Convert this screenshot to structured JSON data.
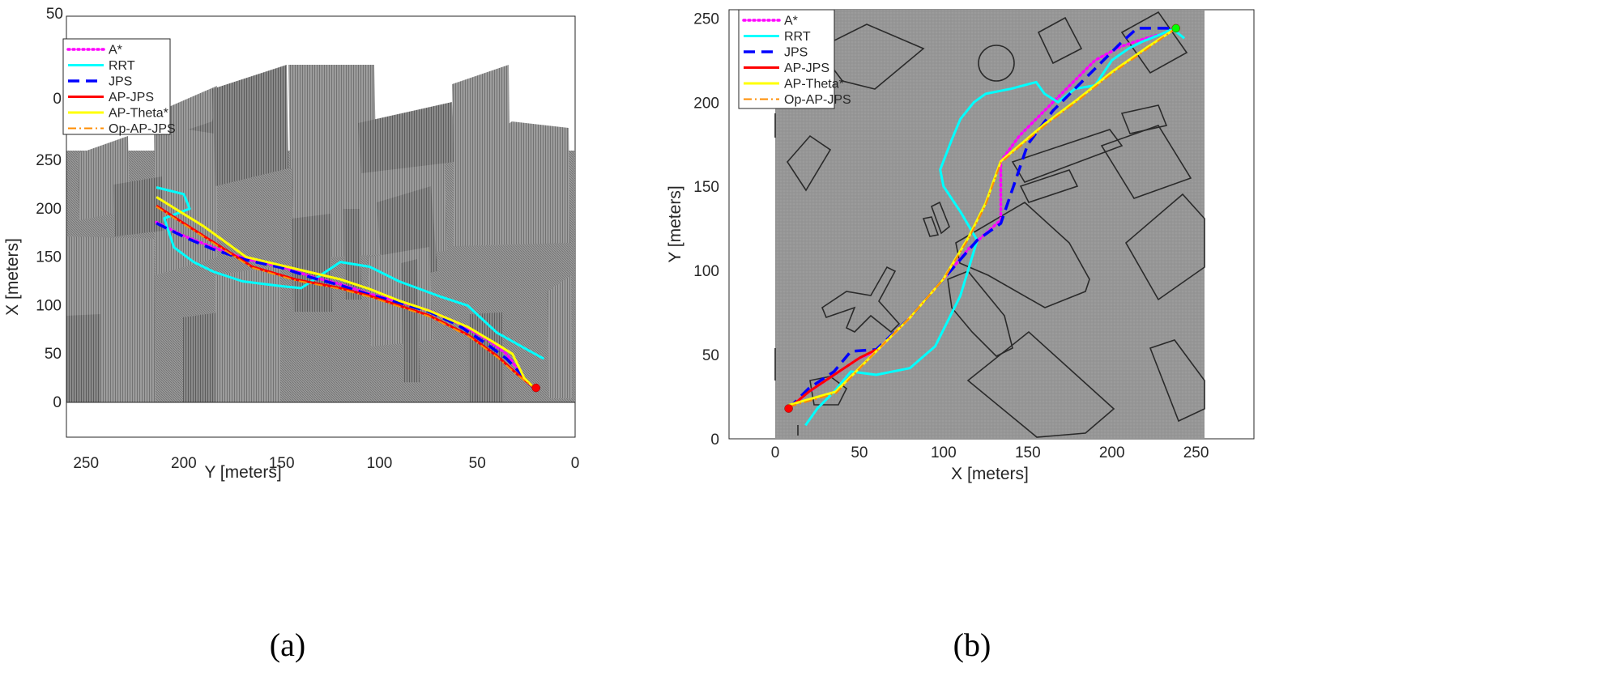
{
  "chart_data": [
    {
      "type": "line",
      "panel_label": "(a)",
      "view": "3d",
      "xlabel": "Y [meters]",
      "ylabel": "X [meters]",
      "x_ticks": [
        "250",
        "200",
        "150",
        "100",
        "50",
        "0"
      ],
      "y_ticks": [
        "0",
        "50",
        "100",
        "150",
        "200",
        "250"
      ],
      "z_ticks": [
        "50",
        "0"
      ],
      "xlim": [
        260,
        0
      ],
      "ylim": [
        0,
        260
      ],
      "grid": false,
      "legend_position": "top-left",
      "series": [
        {
          "name": "A*",
          "color": "#ff00ff",
          "style": "dotted",
          "x": [
            214,
            200,
            185,
            168,
            150,
            135,
            120,
            105,
            90,
            75,
            60,
            45,
            35,
            28,
            24,
            21
          ],
          "y": [
            186,
            172,
            160,
            148,
            140,
            130,
            122,
            112,
            104,
            95,
            82,
            65,
            50,
            30,
            20,
            15
          ]
        },
        {
          "name": "RRT",
          "color": "#00ffff",
          "style": "solid",
          "x": [
            214,
            200,
            197,
            210,
            205,
            195,
            185,
            170,
            150,
            140,
            120,
            105,
            90,
            70,
            55,
            40,
            25,
            16
          ],
          "y": [
            222,
            215,
            200,
            190,
            160,
            145,
            135,
            125,
            120,
            118,
            145,
            140,
            125,
            110,
            100,
            72,
            55,
            45
          ]
        },
        {
          "name": "JPS",
          "color": "#0000ff",
          "style": "dashed",
          "x": [
            214,
            200,
            185,
            168,
            150,
            135,
            120,
            105,
            90,
            75,
            60,
            45,
            35,
            28,
            24,
            21
          ],
          "y": [
            185,
            171,
            158,
            147,
            139,
            129,
            121,
            111,
            103,
            94,
            80,
            60,
            45,
            30,
            20,
            15
          ]
        },
        {
          "name": "AP-JPS",
          "color": "#ff0000",
          "style": "solid",
          "x": [
            214,
            190,
            165,
            143,
            120,
            105,
            90,
            75,
            55,
            40,
            30,
            21
          ],
          "y": [
            203,
            172,
            140,
            127,
            118,
            110,
            100,
            90,
            70,
            48,
            30,
            15
          ]
        },
        {
          "name": "AP-Theta*",
          "color": "#ffff00",
          "style": "solid",
          "x": [
            214,
            190,
            168,
            143,
            120,
            105,
            90,
            75,
            55,
            40,
            32,
            26,
            21
          ],
          "y": [
            212,
            182,
            150,
            138,
            127,
            117,
            105,
            95,
            78,
            60,
            50,
            25,
            15
          ]
        },
        {
          "name": "Op-AP-JPS",
          "color": "#ff8c00",
          "style": "dashdot",
          "x": [
            214,
            190,
            165,
            143,
            120,
            105,
            90,
            75,
            55,
            40,
            30,
            21
          ],
          "y": [
            202,
            171,
            139,
            126,
            117,
            109,
            99,
            89,
            69,
            47,
            29,
            15
          ]
        }
      ],
      "markers": [
        {
          "x": 20,
          "y": 15,
          "color": "#ff0000"
        }
      ]
    },
    {
      "type": "line",
      "panel_label": "(b)",
      "view": "top",
      "xlabel": "X [meters]",
      "ylabel": "Y [meters]",
      "x_ticks": [
        "0",
        "50",
        "100",
        "150",
        "200",
        "250"
      ],
      "y_ticks": [
        "0",
        "50",
        "100",
        "150",
        "200",
        "250"
      ],
      "xlim": [
        -30,
        285
      ],
      "ylim": [
        0,
        255
      ],
      "grid": false,
      "legend_position": "top-left",
      "series": [
        {
          "name": "A*",
          "color": "#ff00ff",
          "style": "dotted",
          "x": [
            8,
            20,
            35,
            50,
            60,
            80,
            100,
            115,
            125,
            134,
            134,
            145,
            160,
            175,
            190,
            205,
            220,
            235,
            238
          ],
          "y": [
            18,
            28,
            38,
            48,
            52,
            72,
            95,
            113,
            122,
            130,
            165,
            180,
            195,
            210,
            225,
            233,
            238,
            242,
            244
          ]
        },
        {
          "name": "RRT",
          "color": "#00ffff",
          "style": "solid",
          "x": [
            18,
            25,
            35,
            45,
            60,
            80,
            95,
            110,
            120,
            110,
            100,
            98,
            105,
            110,
            118,
            125,
            140,
            155,
            160,
            168,
            178,
            190,
            200,
            210,
            218,
            228,
            235,
            238,
            243
          ],
          "y": [
            8,
            18,
            28,
            40,
            38,
            42,
            55,
            85,
            118,
            135,
            150,
            160,
            178,
            190,
            200,
            205,
            208,
            212,
            205,
            200,
            208,
            210,
            225,
            232,
            236,
            240,
            243,
            242,
            238
          ]
        },
        {
          "name": "JPS",
          "color": "#0000ff",
          "style": "dashed",
          "x": [
            8,
            20,
            35,
            45,
            60,
            80,
            100,
            120,
            134,
            150,
            165,
            180,
            195,
            205,
            215,
            225,
            235,
            238
          ],
          "y": [
            18,
            30,
            40,
            52,
            53,
            72,
            95,
            118,
            128,
            175,
            195,
            210,
            225,
            235,
            244,
            244,
            244,
            244
          ]
        },
        {
          "name": "AP-JPS",
          "color": "#ff0000",
          "style": "solid",
          "x": [
            8,
            20,
            35,
            50,
            60
          ],
          "y": [
            18,
            28,
            38,
            48,
            53
          ]
        },
        {
          "name": "AP-Theta*",
          "color": "#ffff00",
          "style": "solid",
          "x": [
            8,
            36,
            60,
            80,
            100,
            115,
            125,
            134,
            160,
            180,
            200,
            220,
            238
          ],
          "y": [
            20,
            28,
            52,
            72,
            95,
            120,
            140,
            165,
            187,
            202,
            218,
            232,
            244
          ]
        },
        {
          "name": "Op-AP-JPS",
          "color": "#ff8c00",
          "style": "dashdot",
          "x": [
            8,
            36,
            60,
            80,
            100,
            115,
            125,
            134,
            160,
            180,
            200,
            220,
            238
          ],
          "y": [
            19,
            27,
            52,
            72,
            95,
            119,
            139,
            164,
            186,
            201,
            217,
            231,
            244
          ]
        }
      ],
      "markers": [
        {
          "x": 8,
          "y": 18,
          "color": "#ff0000"
        },
        {
          "x": 238,
          "y": 244,
          "color": "#00ff00"
        }
      ]
    }
  ]
}
